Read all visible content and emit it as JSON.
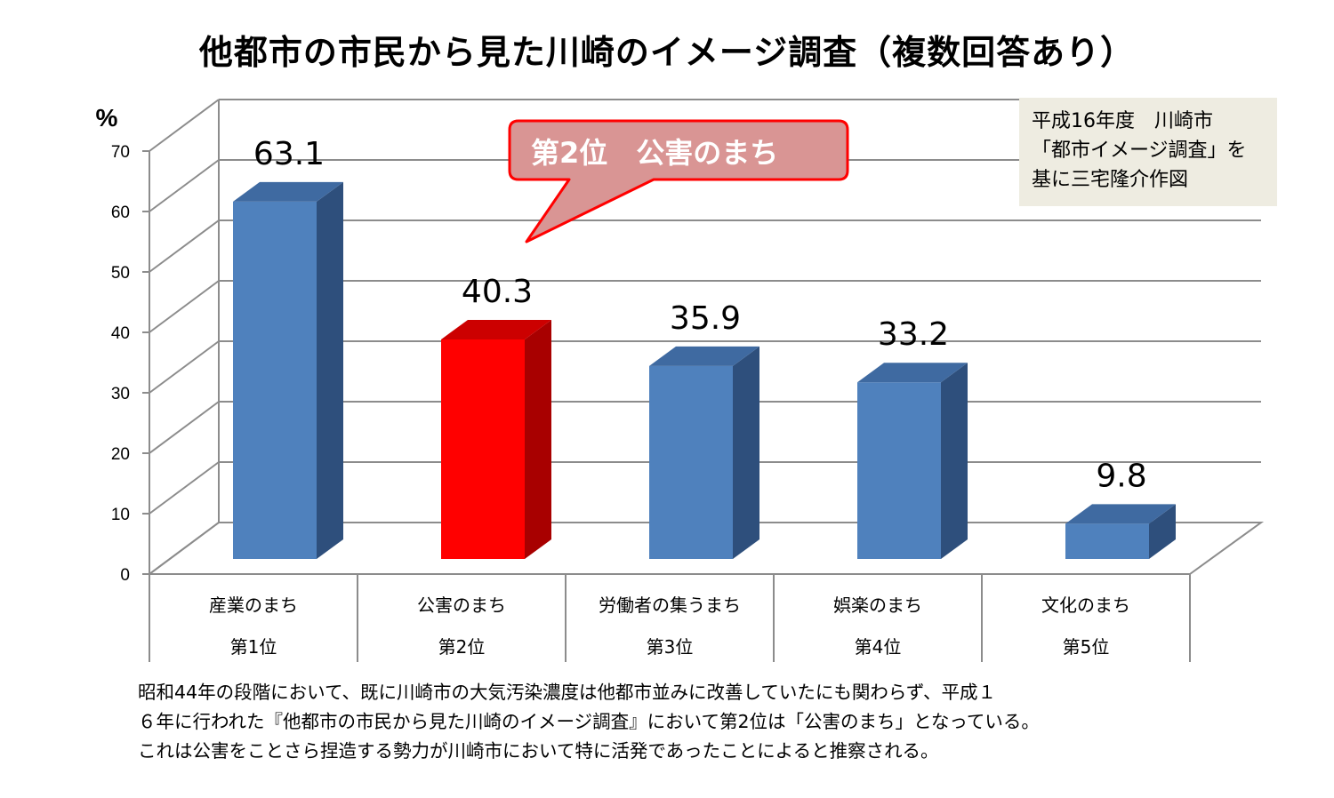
{
  "title": "他都市の市民から見た川崎のイメージ調査（複数回答あり）",
  "chart_data": {
    "type": "bar",
    "title": "他都市の市民から見た川崎のイメージ調査（複数回答あり）",
    "ylabel": "%",
    "ylim": [
      0,
      70
    ],
    "yticks": [
      0,
      10,
      20,
      30,
      40,
      50,
      60,
      70
    ],
    "grid": true,
    "categories": [
      "産業のまち",
      "公害のまち",
      "労働者の集うまち",
      "娯楽のまち",
      "文化のまち"
    ],
    "ranks": [
      "第1位",
      "第2位",
      "第3位",
      "第4位",
      "第5位"
    ],
    "values": [
      63.1,
      40.3,
      35.9,
      33.2,
      9.8
    ],
    "data_labels": [
      "63.1",
      "40.3",
      "35.9",
      "33.2",
      "9.8"
    ],
    "highlight_index": 1,
    "annotation": "第2位　公害のまち"
  },
  "colors": {
    "bar": "#4f81bd",
    "bar_side": "#2e4f7c",
    "bar_top": "#3f6aa1",
    "highlight": "#ff0000",
    "highlight_side": "#a80000",
    "highlight_top": "#cc0000",
    "callout_fill": "#d99594",
    "callout_stroke": "#ff0000",
    "note_bg": "#eeece1"
  },
  "source_note": [
    "平成16年度　川崎市",
    "「都市イメージ調査」を",
    "基に三宅隆介作図"
  ],
  "footnote": [
    "昭和44年の段階において、既に川崎市の大気汚染濃度は他都市並みに改善していたにも関わらず、平成１",
    "６年に行われた『他都市の市民から見た川崎のイメージ調査』において第2位は「公害のまち」となっている。",
    "これは公害をことさら捏造する勢力が川崎市において特に活発であったことによると推察される。"
  ]
}
